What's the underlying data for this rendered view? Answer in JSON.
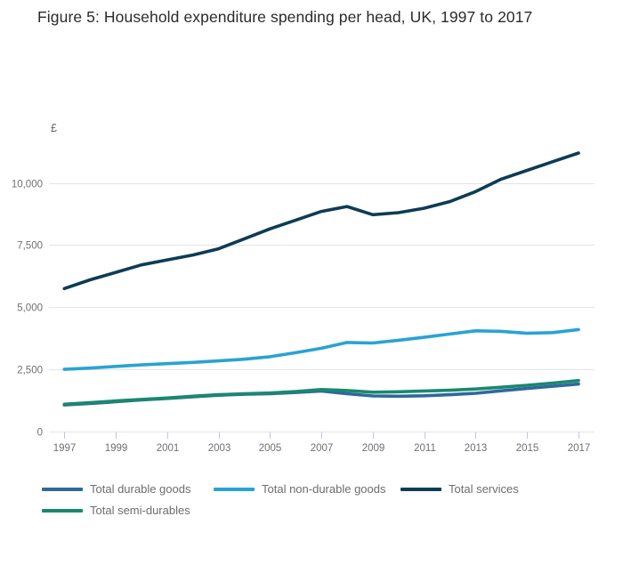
{
  "title": "Figure 5: Household expenditure spending per head, UK, 1997 to 2017",
  "y_axis": {
    "unit": "£",
    "tick_labels": [
      "0",
      "2,500",
      "5,000",
      "7,500",
      "10,000"
    ],
    "tick_values": [
      0,
      2500,
      5000,
      7500,
      10000
    ]
  },
  "x_axis": {
    "tick_labels": [
      "1997",
      "1999",
      "2001",
      "2003",
      "2005",
      "2007",
      "2009",
      "2011",
      "2013",
      "2015",
      "2017"
    ],
    "tick_years": [
      1997,
      1999,
      2001,
      2003,
      2005,
      2007,
      2009,
      2011,
      2013,
      2015,
      2017
    ]
  },
  "colors": {
    "grid": "#e4e4e4",
    "axis_text": "#707070",
    "tick_mark": "#b9c8e0",
    "title_text": "#2b2b2b",
    "legend_text": "#6d6d6d",
    "unit_text": "#666666"
  },
  "chart_data": {
    "type": "line",
    "title": "Figure 5: Household expenditure spending per head, UK, 1997 to 2017",
    "xlabel": "",
    "ylabel": "£",
    "xlim": [
      1997,
      2017
    ],
    "ylim": [
      0,
      11500
    ],
    "grid": true,
    "legend_position": "bottom",
    "x": [
      1997,
      1998,
      1999,
      2000,
      2001,
      2002,
      2003,
      2004,
      2005,
      2006,
      2007,
      2008,
      2009,
      2010,
      2011,
      2012,
      2013,
      2014,
      2015,
      2016,
      2017
    ],
    "series": [
      {
        "name": "Total durable goods",
        "color": "#30689c",
        "values": [
          1070,
          1130,
          1200,
          1270,
          1330,
          1400,
          1460,
          1500,
          1520,
          1570,
          1630,
          1520,
          1430,
          1420,
          1440,
          1480,
          1540,
          1640,
          1730,
          1820,
          1910
        ]
      },
      {
        "name": "Total non-durable goods",
        "color": "#29a3d4",
        "values": [
          2500,
          2550,
          2620,
          2680,
          2730,
          2780,
          2840,
          2910,
          3010,
          3170,
          3350,
          3580,
          3560,
          3670,
          3790,
          3920,
          4050,
          4030,
          3950,
          3980,
          4100
        ]
      },
      {
        "name": "Total services",
        "color": "#0d3c55",
        "values": [
          5750,
          6100,
          6400,
          6700,
          6900,
          7100,
          7350,
          7750,
          8150,
          8500,
          8850,
          9050,
          8720,
          8800,
          8980,
          9250,
          9650,
          10150,
          10500,
          10850,
          11200
        ]
      },
      {
        "name": "Total semi-durables",
        "color": "#18896f",
        "values": [
          1100,
          1160,
          1230,
          1290,
          1350,
          1420,
          1480,
          1520,
          1550,
          1610,
          1690,
          1650,
          1580,
          1600,
          1630,
          1660,
          1710,
          1780,
          1860,
          1950,
          2050
        ]
      }
    ]
  }
}
